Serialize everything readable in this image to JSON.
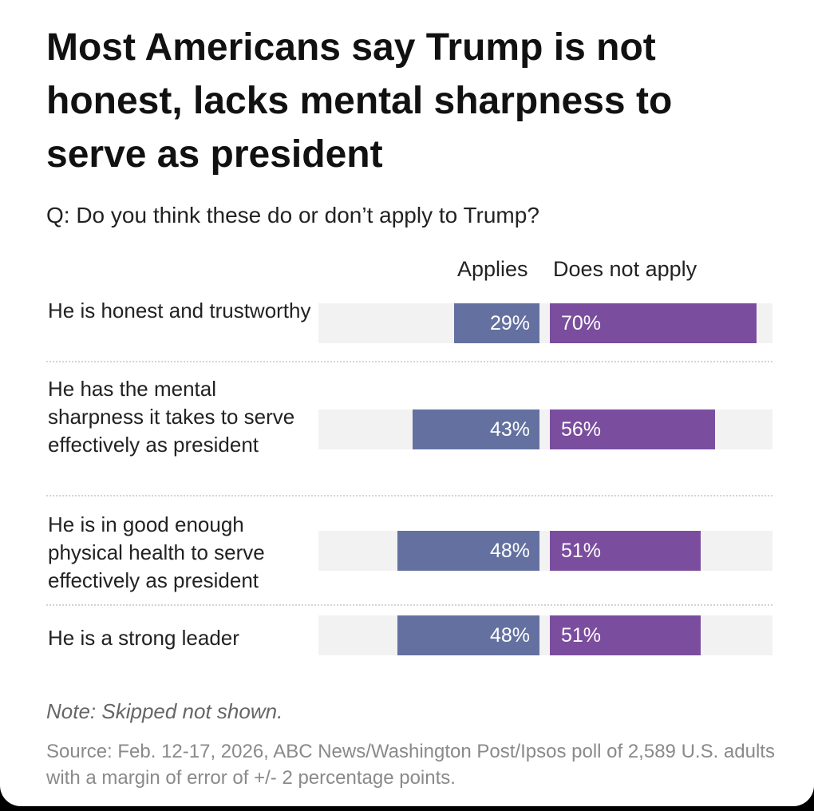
{
  "chart_data": {
    "type": "bar",
    "title": "Most Americans say Trump is not honest, lacks mental sharpness to serve as president",
    "subtitle": "Q: Do you think these do or don’t apply to Trump?",
    "orientation": "horizontal-diverging",
    "categories": [
      "He is honest and trustworthy",
      "He has the mental sharpness it takes to serve effectively as president",
      "He is in good enough physical health to serve effectively as president",
      "He is a strong leader"
    ],
    "series": [
      {
        "name": "Applies",
        "color": "#6471a0",
        "values": [
          29,
          43,
          48,
          48
        ],
        "labels": [
          "29%",
          "43%",
          "48%",
          "48%"
        ]
      },
      {
        "name": "Does not apply",
        "color": "#7b4d9e",
        "values": [
          70,
          56,
          51,
          51
        ],
        "labels": [
          "70%",
          "56%",
          "51%",
          "51%"
        ]
      }
    ],
    "value_unit": "%",
    "track_color": "#f2f2f2",
    "note": "Note: Skipped not shown.",
    "source": "Source: Feb. 12-17, 2026, ABC News/Washington Post/Ipsos poll of 2,589 U.S. adults with a margin of error of +/- 2 percentage points."
  }
}
